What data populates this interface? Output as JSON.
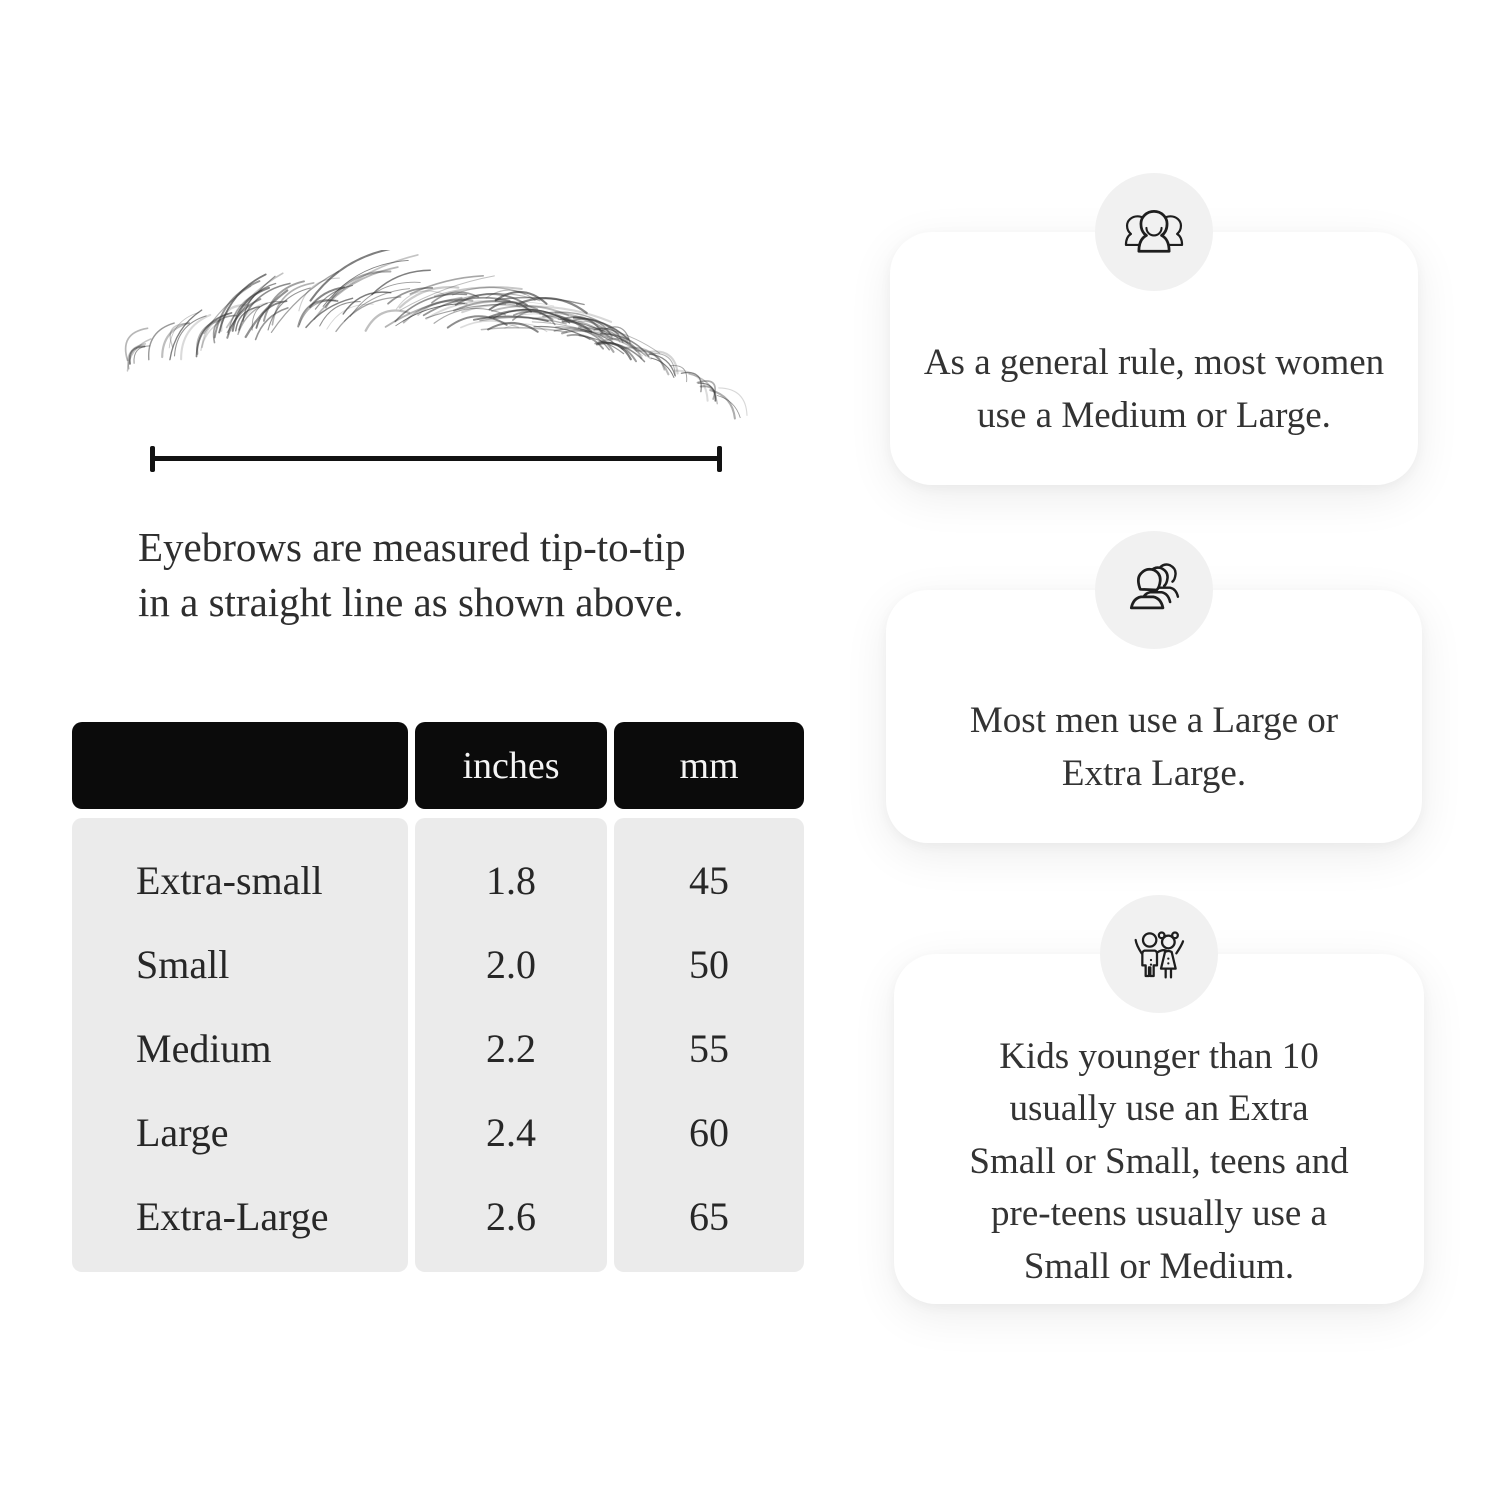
{
  "page": {
    "background": "#ffffff"
  },
  "figure": {
    "illustration": "eyebrow-sketch",
    "caption_lines": [
      "Eyebrows are measured tip-to-tip",
      "in a straight line as shown above."
    ]
  },
  "table": {
    "headers": [
      "",
      "inches",
      "mm"
    ],
    "rows": [
      {
        "label": "Extra-small",
        "inches": "1.8",
        "mm": "45"
      },
      {
        "label": "Small",
        "inches": "2.0",
        "mm": "50"
      },
      {
        "label": "Medium",
        "inches": "2.2",
        "mm": "55"
      },
      {
        "label": "Large",
        "inches": "2.4",
        "mm": "60"
      },
      {
        "label": "Extra-Large",
        "inches": "2.6",
        "mm": "65"
      }
    ],
    "header_bg": "#0b0b0b",
    "body_bg": "#ebebeb"
  },
  "cards": [
    {
      "icon": "women-group-icon",
      "lines": [
        "As a general rule, most women",
        "use a Medium or Large."
      ]
    },
    {
      "icon": "men-group-icon",
      "lines": [
        "Most men use a Large or",
        "Extra Large."
      ]
    },
    {
      "icon": "kids-icon",
      "lines": [
        "Kids younger than 10",
        "usually use an Extra",
        "Small or Small, teens and",
        "pre-teens usually use a",
        "Small or Medium."
      ]
    }
  ],
  "colors": {
    "icon_circle_bg": "#f1f1f1",
    "card_bg": "#ffffff",
    "text": "#2b2b2b",
    "measure_line": "#121212"
  }
}
